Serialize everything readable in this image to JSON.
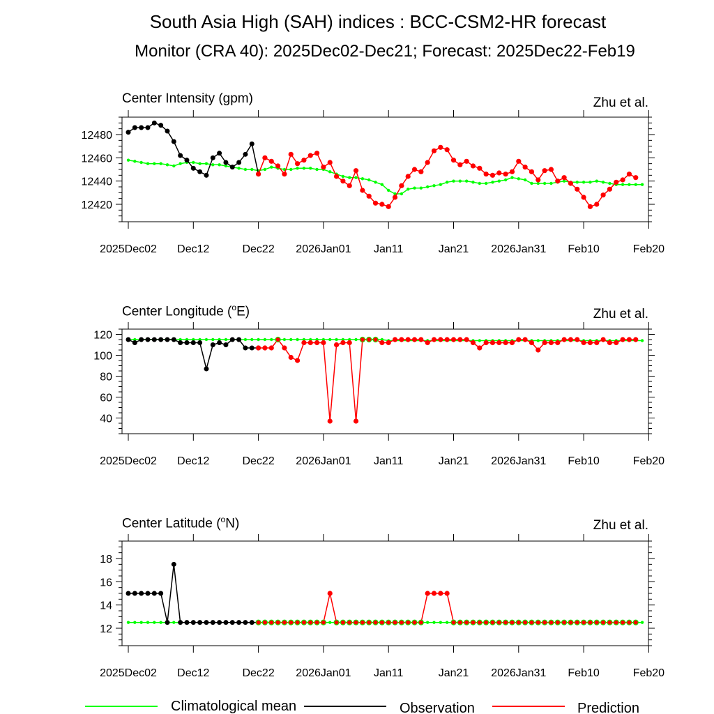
{
  "figure": {
    "title": "South Asia High (SAH) indices : BCC-CSM2-HR forecast",
    "subtitle": "Monitor (CRA 40): 2025Dec02-Dec21; Forecast: 2025Dec22-Feb19",
    "credit": "Zhu et al.",
    "colors": {
      "clim": "#00ff00",
      "obs": "#000000",
      "pred": "#ff0000"
    }
  },
  "legend": [
    {
      "key": "clim",
      "label": "Climatological mean"
    },
    {
      "key": "obs",
      "label": "Observation"
    },
    {
      "key": "pred",
      "label": "Prediction"
    }
  ],
  "chart_data": [
    {
      "type": "line",
      "title": "Center Intensity (gpm)",
      "x_tick_labels": [
        "2025Dec02",
        "Dec12",
        "Dec22",
        "2026Jan01",
        "Jan11",
        "Jan21",
        "2026Jan31",
        "Feb10",
        "Feb20"
      ],
      "x_range": [
        0,
        80
      ],
      "ylim": [
        12405,
        12495
      ],
      "yticks": [
        12420,
        12440,
        12460,
        12480
      ],
      "climatology": [
        12458,
        12457,
        12456,
        12455,
        12455,
        12455,
        12454,
        12453,
        12455,
        12456,
        12456,
        12455,
        12455,
        12454,
        12454,
        12453,
        12452,
        12451,
        12450,
        12450,
        12449,
        12450,
        12452,
        12451,
        12450,
        12450,
        12451,
        12451,
        12451,
        12450,
        12450,
        12448,
        12446,
        12444,
        12443,
        12443,
        12442,
        12441,
        12439,
        12437,
        12432,
        12429,
        12429,
        12433,
        12434,
        12434,
        12435,
        12436,
        12437,
        12439,
        12440,
        12440,
        12440,
        12439,
        12438,
        12438,
        12439,
        12440,
        12441,
        12443,
        12442,
        12441,
        12438,
        12438,
        12438,
        12438,
        12439,
        12440,
        12439,
        12439,
        12439,
        12439,
        12440,
        12439,
        12438,
        12437,
        12437,
        12437,
        12437,
        12437
      ],
      "observation": [
        12482,
        12486,
        12486,
        12486,
        12490,
        12488,
        12483,
        12474,
        12462,
        12458,
        12451,
        12448,
        12445,
        12460,
        12464,
        12456,
        12452,
        12456,
        12463,
        12472,
        12446
      ],
      "prediction": [
        12446,
        12460,
        12457,
        12453,
        12446,
        12463,
        12455,
        12458,
        12462,
        12464,
        12452,
        12456,
        12444,
        12440,
        12436,
        12449,
        12432,
        12427,
        12421,
        12420,
        12418,
        12426,
        12436,
        12444,
        12450,
        12448,
        12456,
        12466,
        12469,
        12467,
        12458,
        12454,
        12457,
        12453,
        12451,
        12446,
        12445,
        12447,
        12446,
        12448,
        12457,
        12452,
        12448,
        12441,
        12449,
        12450,
        12440,
        12443,
        12438,
        12433,
        12426,
        12418,
        12420,
        12428,
        12433,
        12439,
        12441,
        12446,
        12443
      ]
    },
    {
      "type": "line",
      "title": "Center Longitude (°E)",
      "title_main": "Center Longitude (",
      "title_sup": "o",
      "title_end": "E)",
      "x_tick_labels": [
        "2025Dec02",
        "Dec12",
        "Dec22",
        "2026Jan01",
        "Jan11",
        "Jan21",
        "2026Jan31",
        "Feb10",
        "Feb20"
      ],
      "x_range": [
        0,
        80
      ],
      "ylim": [
        25,
        125
      ],
      "yticks": [
        40,
        60,
        80,
        100,
        120
      ],
      "climatology": [
        115,
        115,
        115,
        115,
        115,
        115,
        115,
        115,
        115,
        115,
        115,
        115,
        115,
        115,
        115,
        115,
        115,
        115,
        115,
        115,
        115,
        115,
        115,
        115,
        115,
        115,
        115,
        115,
        115,
        115,
        115,
        115,
        115,
        115,
        115,
        115,
        115,
        115,
        115,
        115,
        114,
        114,
        114,
        114,
        114,
        114,
        114,
        114,
        114,
        114,
        114,
        114,
        114,
        114,
        114,
        114,
        114,
        114,
        114,
        114,
        114,
        114,
        114,
        114,
        114,
        114,
        114,
        114,
        114,
        114,
        114,
        114,
        114,
        114,
        114,
        114,
        114,
        114,
        114,
        114
      ],
      "observation": [
        115,
        112,
        115,
        115,
        115,
        115,
        115,
        115,
        112,
        112,
        112,
        112,
        87,
        110,
        112,
        110,
        115,
        115,
        107,
        107,
        107
      ],
      "prediction": [
        107,
        107,
        107,
        115,
        107,
        98,
        95,
        112,
        112,
        112,
        112,
        37,
        110,
        112,
        112,
        37,
        115,
        115,
        115,
        112,
        112,
        115,
        115,
        115,
        115,
        115,
        112,
        115,
        115,
        115,
        115,
        115,
        115,
        112,
        107,
        112,
        112,
        112,
        112,
        112,
        115,
        115,
        112,
        105,
        112,
        112,
        112,
        115,
        115,
        115,
        112,
        112,
        112,
        115,
        112,
        112,
        115,
        115,
        115
      ]
    },
    {
      "type": "line",
      "title": "Center Latitude (°N)",
      "title_main": "Center Latitude (",
      "title_sup": "o",
      "title_end": "N)",
      "x_tick_labels": [
        "2025Dec02",
        "Dec12",
        "Dec22",
        "2026Jan01",
        "Jan11",
        "Jan21",
        "2026Jan31",
        "Feb10",
        "Feb20"
      ],
      "x_range": [
        0,
        80
      ],
      "ylim": [
        10.5,
        19.5
      ],
      "yticks": [
        12,
        14,
        16,
        18
      ],
      "climatology": [
        12.5,
        12.5,
        12.5,
        12.5,
        12.5,
        12.5,
        12.5,
        12.5,
        12.5,
        12.5,
        12.5,
        12.5,
        12.5,
        12.5,
        12.5,
        12.5,
        12.5,
        12.5,
        12.5,
        12.5,
        12.5,
        12.5,
        12.5,
        12.5,
        12.5,
        12.5,
        12.5,
        12.5,
        12.5,
        12.5,
        12.5,
        12.5,
        12.5,
        12.5,
        12.5,
        12.5,
        12.5,
        12.5,
        12.5,
        12.5,
        12.5,
        12.5,
        12.5,
        12.5,
        12.5,
        12.5,
        12.5,
        12.5,
        12.5,
        12.5,
        12.5,
        12.5,
        12.5,
        12.5,
        12.5,
        12.5,
        12.5,
        12.5,
        12.5,
        12.5,
        12.5,
        12.5,
        12.5,
        12.5,
        12.5,
        12.5,
        12.5,
        12.5,
        12.5,
        12.5,
        12.5,
        12.5,
        12.5,
        12.5,
        12.5,
        12.5,
        12.5,
        12.5,
        12.5,
        12.5
      ],
      "observation": [
        15,
        15,
        15,
        15,
        15,
        15,
        12.5,
        17.5,
        12.5,
        12.5,
        12.5,
        12.5,
        12.5,
        12.5,
        12.5,
        12.5,
        12.5,
        12.5,
        12.5,
        12.5,
        12.5
      ],
      "prediction": [
        12.5,
        12.5,
        12.5,
        12.5,
        12.5,
        12.5,
        12.5,
        12.5,
        12.5,
        12.5,
        12.5,
        15,
        12.5,
        12.5,
        12.5,
        12.5,
        12.5,
        12.5,
        12.5,
        12.5,
        12.5,
        12.5,
        12.5,
        12.5,
        12.5,
        12.5,
        15,
        15,
        15,
        15,
        12.5,
        12.5,
        12.5,
        12.5,
        12.5,
        12.5,
        12.5,
        12.5,
        12.5,
        12.5,
        12.5,
        12.5,
        12.5,
        12.5,
        12.5,
        12.5,
        12.5,
        12.5,
        12.5,
        12.5,
        12.5,
        12.5,
        12.5,
        12.5,
        12.5,
        12.5,
        12.5,
        12.5,
        12.5
      ]
    }
  ]
}
